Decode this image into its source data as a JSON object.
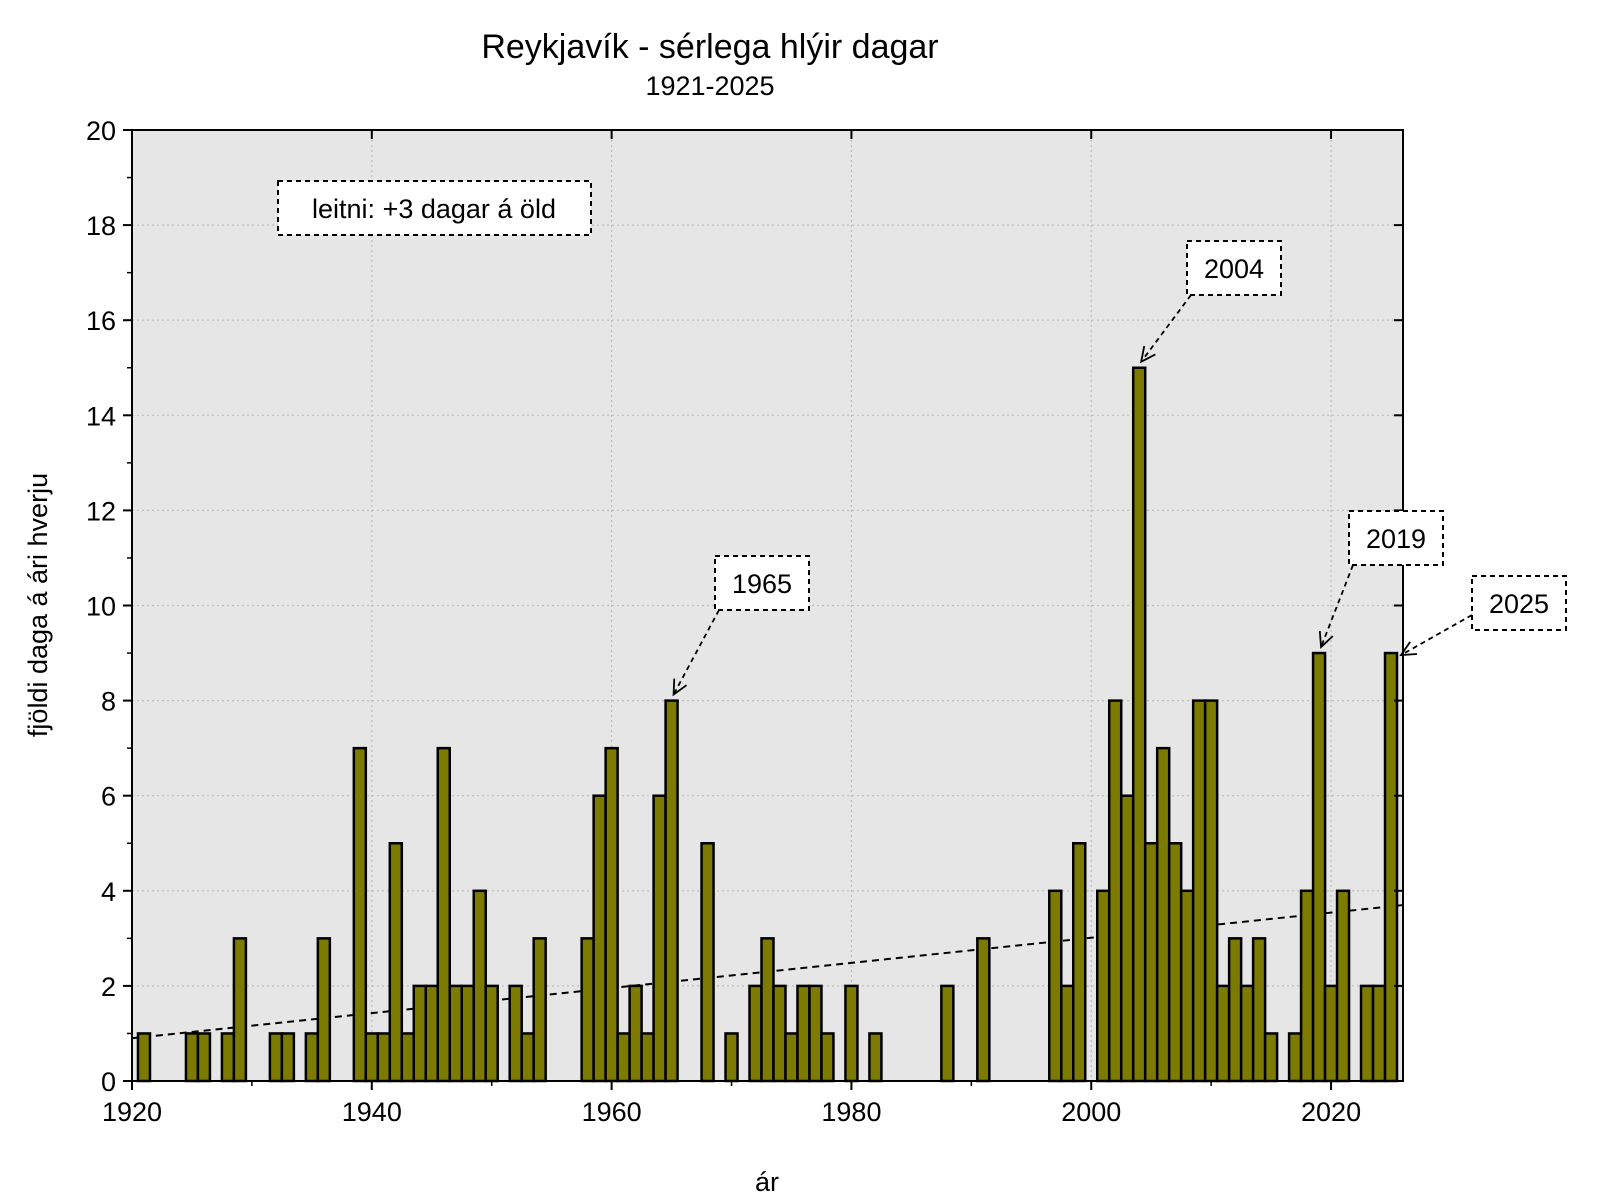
{
  "chart_data": {
    "type": "bar",
    "title": "Reykjavík - sérlega hlýir dagar",
    "subtitle": "1921-2025",
    "xlabel": "ár",
    "ylabel": "fjöldi daga á ári hverju",
    "xlim": [
      1920,
      2026
    ],
    "ylim": [
      0,
      20
    ],
    "x_ticks": [
      1920,
      1940,
      1960,
      1980,
      2000,
      2020
    ],
    "y_ticks": [
      0,
      2,
      4,
      6,
      8,
      10,
      12,
      14,
      16,
      18,
      20
    ],
    "grid": true,
    "bar_color": "#7d7a00",
    "background_color": "#e6e6e6",
    "x": [
      1921,
      1922,
      1923,
      1924,
      1925,
      1926,
      1927,
      1928,
      1929,
      1930,
      1931,
      1932,
      1933,
      1934,
      1935,
      1936,
      1937,
      1938,
      1939,
      1940,
      1941,
      1942,
      1943,
      1944,
      1945,
      1946,
      1947,
      1948,
      1949,
      1950,
      1951,
      1952,
      1953,
      1954,
      1955,
      1956,
      1957,
      1958,
      1959,
      1960,
      1961,
      1962,
      1963,
      1964,
      1965,
      1966,
      1967,
      1968,
      1969,
      1970,
      1971,
      1972,
      1973,
      1974,
      1975,
      1976,
      1977,
      1978,
      1979,
      1980,
      1981,
      1982,
      1983,
      1984,
      1985,
      1986,
      1987,
      1988,
      1989,
      1990,
      1991,
      1992,
      1993,
      1994,
      1995,
      1996,
      1997,
      1998,
      1999,
      2000,
      2001,
      2002,
      2003,
      2004,
      2005,
      2006,
      2007,
      2008,
      2009,
      2010,
      2011,
      2012,
      2013,
      2014,
      2015,
      2016,
      2017,
      2018,
      2019,
      2020,
      2021,
      2022,
      2023,
      2024,
      2025
    ],
    "values": [
      1,
      0,
      0,
      0,
      1,
      1,
      0,
      1,
      3,
      0,
      0,
      1,
      1,
      0,
      1,
      3,
      0,
      0,
      7,
      1,
      1,
      5,
      1,
      2,
      2,
      7,
      2,
      2,
      4,
      2,
      0,
      2,
      1,
      3,
      0,
      0,
      0,
      3,
      6,
      7,
      1,
      2,
      1,
      6,
      8,
      0,
      0,
      5,
      0,
      1,
      0,
      2,
      3,
      2,
      1,
      2,
      2,
      1,
      0,
      2,
      0,
      1,
      0,
      0,
      0,
      0,
      0,
      2,
      0,
      0,
      3,
      0,
      0,
      0,
      0,
      0,
      4,
      2,
      5,
      0,
      4,
      8,
      6,
      15,
      5,
      7,
      5,
      4,
      8,
      8,
      2,
      3,
      2,
      3,
      1,
      0,
      1,
      4,
      9,
      2,
      4,
      0,
      2,
      2,
      9
    ],
    "trend": {
      "label": "leitni: +3 dagar á öld",
      "start": [
        1920,
        0.9
      ],
      "end": [
        2026,
        3.7
      ]
    },
    "annotations": [
      {
        "label": "1965",
        "year": 1965,
        "value": 8
      },
      {
        "label": "2004",
        "year": 2004,
        "value": 15
      },
      {
        "label": "2019",
        "year": 2019,
        "value": 9
      },
      {
        "label": "2025",
        "year": 2025,
        "value": 9
      }
    ]
  }
}
